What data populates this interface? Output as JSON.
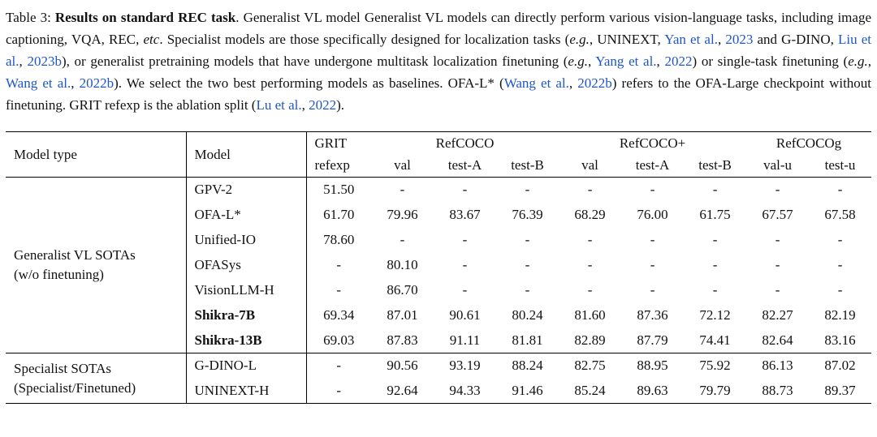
{
  "colors": {
    "link": "#1E56C8",
    "ink": "#111111"
  },
  "caption": {
    "segments": [
      {
        "t": "Table 3: ",
        "s": "normal"
      },
      {
        "t": "Results on standard REC task",
        "s": "bold"
      },
      {
        "t": ". Generalist VL model Generalist VL models can directly perform various vision-language tasks, including image captioning, VQA, REC, ",
        "s": "normal"
      },
      {
        "t": "etc",
        "s": "italic"
      },
      {
        "t": ". Specialist models are those specifically designed for localization tasks (",
        "s": "normal"
      },
      {
        "t": "e.g.",
        "s": "italic"
      },
      {
        "t": ", UNINEXT, ",
        "s": "normal"
      },
      {
        "t": "Yan et al.",
        "s": "link"
      },
      {
        "t": ", ",
        "s": "normal"
      },
      {
        "t": "2023",
        "s": "link"
      },
      {
        "t": " and G-DINO, ",
        "s": "normal"
      },
      {
        "t": "Liu et al.",
        "s": "link"
      },
      {
        "t": ", ",
        "s": "normal"
      },
      {
        "t": "2023b",
        "s": "link"
      },
      {
        "t": "), or generalist pretraining models that have undergone multitask localization finetuning (",
        "s": "normal"
      },
      {
        "t": "e.g.",
        "s": "italic"
      },
      {
        "t": ", ",
        "s": "normal"
      },
      {
        "t": "Yang et al.",
        "s": "link"
      },
      {
        "t": ", ",
        "s": "normal"
      },
      {
        "t": "2022",
        "s": "link"
      },
      {
        "t": ") or single-task finetuning (",
        "s": "normal"
      },
      {
        "t": "e.g.",
        "s": "italic"
      },
      {
        "t": ", ",
        "s": "normal"
      },
      {
        "t": "Wang et al.",
        "s": "link"
      },
      {
        "t": ", ",
        "s": "normal"
      },
      {
        "t": "2022b",
        "s": "link"
      },
      {
        "t": "). We select the two best performing models as baselines. OFA-L* (",
        "s": "normal"
      },
      {
        "t": "Wang et al.",
        "s": "link"
      },
      {
        "t": ", ",
        "s": "normal"
      },
      {
        "t": "2022b",
        "s": "link"
      },
      {
        "t": ") refers to the OFA-Large checkpoint without finetuning. GRIT refexp is the ablation split (",
        "s": "normal"
      },
      {
        "t": "Lu et al.",
        "s": "link"
      },
      {
        "t": ", ",
        "s": "normal"
      },
      {
        "t": "2022",
        "s": "link"
      },
      {
        "t": ").",
        "s": "normal"
      }
    ]
  },
  "table": {
    "header": {
      "model_type": "Model type",
      "model": "Model"
    },
    "col_groups": [
      {
        "label": "GRIT",
        "sub": [
          "refexp"
        ]
      },
      {
        "label": "RefCOCO",
        "sub": [
          "val",
          "test-A",
          "test-B"
        ]
      },
      {
        "label": "RefCOCO+",
        "sub": [
          "val",
          "test-A",
          "test-B"
        ]
      },
      {
        "label": "RefCOCOg",
        "sub": [
          "val-u",
          "test-u"
        ]
      }
    ],
    "groups": [
      {
        "type_label_lines": [
          "Generalist VL SOTAs",
          "(w/o finetuning)"
        ],
        "rows": [
          {
            "model": "GPV-2",
            "bold": false,
            "values": [
              "51.50",
              "-",
              "-",
              "-",
              "-",
              "-",
              "-",
              "-",
              "-"
            ]
          },
          {
            "model": "OFA-L*",
            "bold": false,
            "values": [
              "61.70",
              "79.96",
              "83.67",
              "76.39",
              "68.29",
              "76.00",
              "61.75",
              "67.57",
              "67.58"
            ]
          },
          {
            "model": "Unified-IO",
            "bold": false,
            "values": [
              "78.60",
              "-",
              "-",
              "-",
              "-",
              "-",
              "-",
              "-",
              "-"
            ]
          },
          {
            "model": "OFASys",
            "bold": false,
            "values": [
              "-",
              "80.10",
              "-",
              "-",
              "-",
              "-",
              "-",
              "-",
              "-"
            ]
          },
          {
            "model": "VisionLLM-H",
            "bold": false,
            "values": [
              "-",
              "86.70",
              "-",
              "-",
              "-",
              "-",
              "-",
              "-",
              "-"
            ]
          },
          {
            "model": "Shikra-7B",
            "bold": true,
            "values": [
              "69.34",
              "87.01",
              "90.61",
              "80.24",
              "81.60",
              "87.36",
              "72.12",
              "82.27",
              "82.19"
            ]
          },
          {
            "model": "Shikra-13B",
            "bold": true,
            "values": [
              "69.03",
              "87.83",
              "91.11",
              "81.81",
              "82.89",
              "87.79",
              "74.41",
              "82.64",
              "83.16"
            ]
          }
        ]
      },
      {
        "type_label_lines": [
          "Specialist SOTAs",
          "(Specialist/Finetuned)"
        ],
        "rows": [
          {
            "model": "G-DINO-L",
            "bold": false,
            "values": [
              "-",
              "90.56",
              "93.19",
              "88.24",
              "82.75",
              "88.95",
              "75.92",
              "86.13",
              "87.02"
            ]
          },
          {
            "model": "UNINEXT-H",
            "bold": false,
            "values": [
              "-",
              "92.64",
              "94.33",
              "91.46",
              "85.24",
              "89.63",
              "79.79",
              "88.73",
              "89.37"
            ]
          }
        ]
      }
    ]
  }
}
